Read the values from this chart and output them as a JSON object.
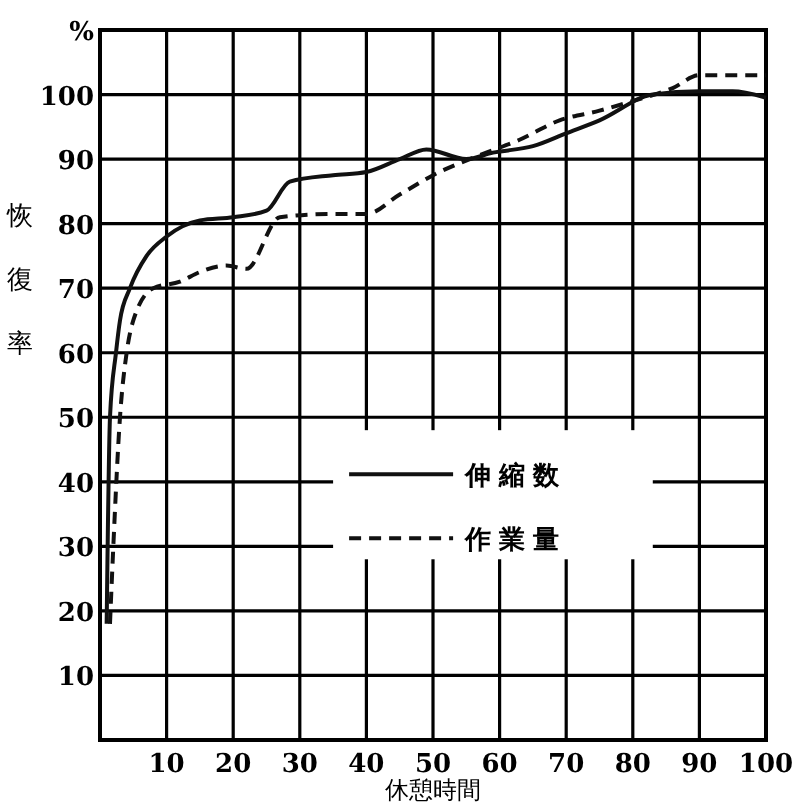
{
  "chart_data": {
    "type": "line",
    "xlabel": "休憩時間",
    "ylabel": "恢復率",
    "xlim": [
      0,
      100
    ],
    "ylim": [
      0,
      110
    ],
    "xticks": [
      10,
      20,
      30,
      40,
      50,
      60,
      70,
      80,
      90,
      100
    ],
    "yticks": [
      10,
      20,
      30,
      40,
      50,
      60,
      70,
      80,
      90,
      100,
      {
        "value": 110,
        "label": "%"
      }
    ],
    "grid": true,
    "legend": "center",
    "marker": "none",
    "series": [
      {
        "name": "伸縮数",
        "color": "#111111",
        "line_style": "solid",
        "x": [
          1,
          1.5,
          2.4,
          3,
          4.5,
          7,
          10,
          15,
          20,
          25,
          28.5,
          35,
          40,
          45,
          49,
          55,
          59,
          65,
          70,
          75,
          83,
          90,
          95,
          100
        ],
        "values": [
          18,
          50,
          60,
          65,
          70,
          75,
          78,
          80.5,
          81,
          82,
          86.5,
          87.5,
          88,
          90,
          91.5,
          90,
          91,
          92,
          94,
          96,
          100,
          100.5,
          100.5,
          99.5
        ]
      },
      {
        "name": "作業量",
        "color": "#111111",
        "line_style": "dashed",
        "x": [
          1.5,
          2,
          3,
          4,
          5,
          8,
          12,
          15,
          19,
          22,
          27,
          35,
          40,
          45,
          50,
          58,
          63,
          69,
          75,
          80,
          86,
          90,
          95,
          100
        ],
        "values": [
          18,
          30,
          50,
          60,
          65,
          70,
          71,
          72.5,
          73.5,
          73,
          81,
          81.5,
          81.5,
          84.5,
          87.5,
          91,
          93,
          96,
          97.5,
          99,
          101,
          103,
          103,
          103
        ]
      }
    ]
  }
}
